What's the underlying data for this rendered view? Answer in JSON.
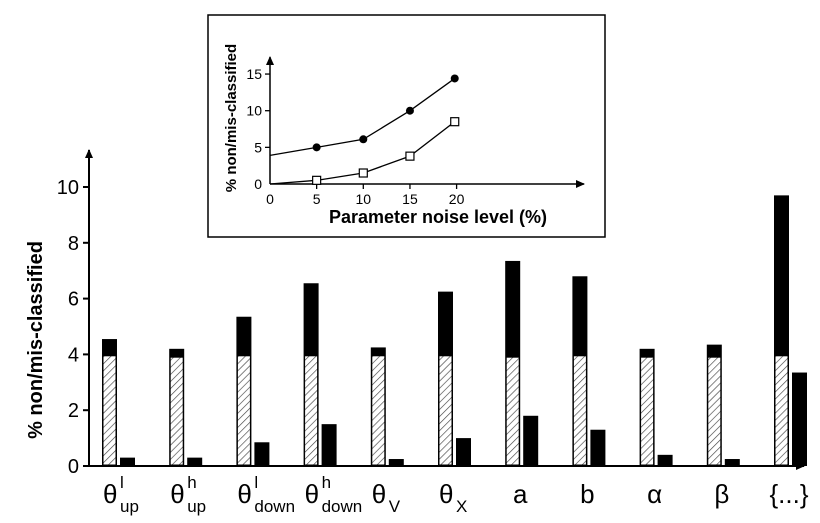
{
  "chart_data": [
    {
      "type": "bar",
      "ylabel": "% non/mis-classified",
      "ylim": [
        0,
        10
      ],
      "yticks": [
        "0",
        "2",
        "4",
        "6",
        "8",
        "10"
      ],
      "categories": [
        {
          "base": "θ",
          "sup": "l",
          "sub": "up"
        },
        {
          "base": "θ",
          "sup": "h",
          "sub": "up"
        },
        {
          "base": "θ",
          "sup": "l",
          "sub": "down"
        },
        {
          "base": "θ",
          "sup": "h",
          "sub": "down"
        },
        {
          "base": "θ",
          "sup": "",
          "sub": "V"
        },
        {
          "base": "θ",
          "sup": "",
          "sub": "X"
        },
        {
          "base": "a",
          "sup": "",
          "sub": ""
        },
        {
          "base": "b",
          "sup": "",
          "sub": ""
        },
        {
          "base": "α",
          "sup": "",
          "sub": ""
        },
        {
          "base": "β",
          "sup": "",
          "sub": ""
        },
        {
          "base": "{...}",
          "sup": "",
          "sub": ""
        }
      ],
      "series": [
        {
          "pattern": "hatched-base",
          "values": [
            3.95,
            3.9,
            3.95,
            3.95,
            3.95,
            3.95,
            3.9,
            3.95,
            3.9,
            3.9,
            3.95
          ]
        },
        {
          "pattern": "solid-top-total",
          "values": [
            4.55,
            4.2,
            5.35,
            6.55,
            4.25,
            6.25,
            7.35,
            6.8,
            4.2,
            4.35,
            9.7
          ]
        },
        {
          "pattern": "solid",
          "values": [
            0.3,
            0.3,
            0.85,
            1.5,
            0.25,
            1.0,
            1.8,
            1.3,
            0.4,
            0.25,
            3.35
          ]
        }
      ],
      "colors": {
        "solid": "#000000",
        "hatch": "#444444"
      }
    },
    {
      "type": "line",
      "xlabel": "Parameter noise level (%)",
      "ylabel": "% non/mis-classified",
      "xlim": [
        0,
        25
      ],
      "ylim": [
        0,
        17
      ],
      "xticks": [
        "0",
        "5",
        "10",
        "15",
        "20"
      ],
      "yticks": [
        "0",
        "5",
        "10",
        "15"
      ],
      "series": [
        {
          "marker": "filled-circle",
          "x": [
            0,
            5,
            10,
            15,
            19.8
          ],
          "y": [
            3.9,
            5.0,
            6.1,
            10.0,
            14.4
          ]
        },
        {
          "marker": "open-square",
          "x": [
            0,
            5,
            10,
            15,
            19.8
          ],
          "y": [
            0,
            0.5,
            1.5,
            3.8,
            8.5
          ]
        }
      ]
    }
  ]
}
